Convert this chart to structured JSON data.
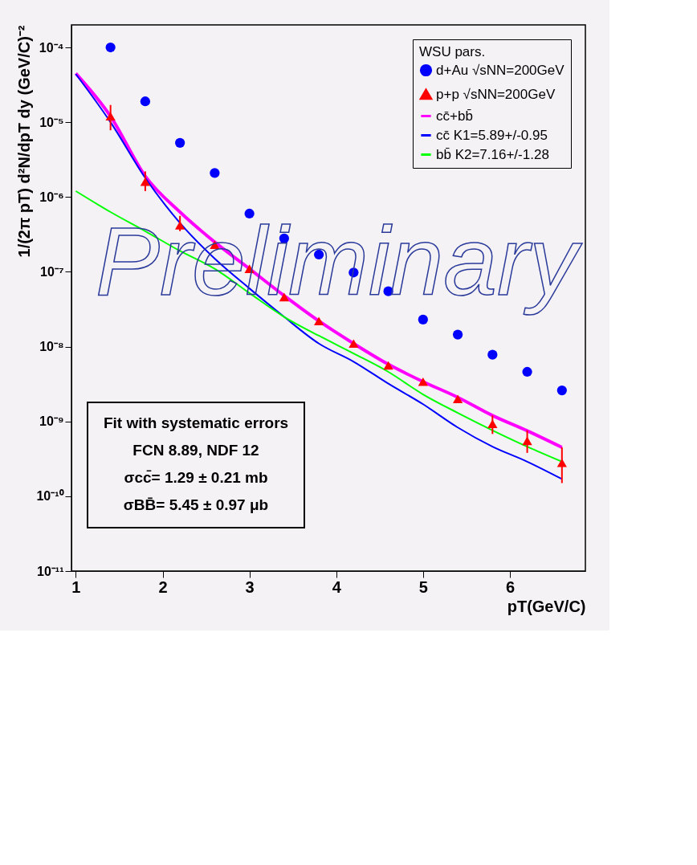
{
  "chart_data": {
    "type": "scatter",
    "xlabel": "pT(GeV/C)",
    "ylabel": "1/(2π pT) d²N/dpT dy (GeV/C)⁻²",
    "legend_title": "WSU pars.",
    "x": [
      1.4,
      1.8,
      2.2,
      2.6,
      3.0,
      3.4,
      3.8,
      4.2,
      4.6,
      5.0,
      5.4,
      5.8,
      6.2,
      6.6
    ],
    "series": [
      {
        "name": "d+Au √sNN=200GeV",
        "marker": "circle",
        "color": "#0000ff",
        "values": [
          0.0001,
          1.9e-05,
          5.3e-06,
          2.1e-06,
          6e-07,
          2.8e-07,
          1.7e-07,
          9.8e-08,
          5.5e-08,
          2.3e-08,
          1.45e-08,
          7.8e-09,
          4.6e-09,
          2.6e-09
        ]
      },
      {
        "name": "p+p  √sNN=200GeV",
        "marker": "triangle",
        "color": "#ff0000",
        "values": [
          1.2e-05,
          1.6e-06,
          4.2e-07,
          2.3e-07,
          1.1e-07,
          4.6e-08,
          2.2e-08,
          1.1e-08,
          5.6e-09,
          3.4e-09,
          2e-09,
          9.3e-10,
          5.5e-10,
          2.8e-10
        ],
        "errors": [
          [
            7.8e-06,
            1.7e-05
          ],
          [
            1.2e-06,
            2.2e-06
          ],
          [
            3.5e-07,
            5.6e-07
          ],
          null,
          null,
          null,
          null,
          null,
          null,
          null,
          null,
          [
            6.8e-10,
            1.2e-09
          ],
          [
            3.8e-10,
            7.6e-10
          ],
          [
            1.5e-10,
            4.5e-10
          ]
        ]
      },
      {
        "name": "cc̄+bb̄",
        "type": "line",
        "color": "#ff00ff",
        "x": [
          1.0,
          1.4,
          1.8,
          2.2,
          2.6,
          3.0,
          3.4,
          3.8,
          4.2,
          4.6,
          5.0,
          5.4,
          5.8,
          6.2,
          6.6
        ],
        "values": [
          4.5e-05,
          1.2e-05,
          1.9e-06,
          6.3e-07,
          2.5e-07,
          1.1e-07,
          4.8e-08,
          2.2e-08,
          1.1e-08,
          5.8e-09,
          3.4e-09,
          2.1e-09,
          1.2e-09,
          7.5e-10,
          4.5e-10
        ]
      },
      {
        "name": "cc̄ K1=5.89+/-0.95",
        "type": "line",
        "color": "#0000ff",
        "x": [
          1.0,
          1.4,
          1.8,
          2.2,
          2.6,
          3.0,
          3.4,
          3.8,
          4.2,
          4.6,
          5.0,
          5.4,
          5.8,
          6.2,
          6.6
        ],
        "values": [
          4.4e-05,
          1e-05,
          1.8e-06,
          4.5e-07,
          1.5e-07,
          6e-08,
          2.5e-08,
          1.1e-08,
          6.3e-09,
          3.2e-09,
          1.7e-09,
          8.3e-10,
          4.6e-10,
          2.9e-10,
          1.7e-10
        ]
      },
      {
        "name": "bb̄ K2=7.16+/-1.28",
        "type": "line",
        "color": "#00ff00",
        "x": [
          1.0,
          1.4,
          1.8,
          2.2,
          2.6,
          3.0,
          3.4,
          3.8,
          4.2,
          4.6,
          5.0,
          5.4,
          5.8,
          6.2,
          6.6
        ],
        "values": [
          1.2e-06,
          6.3e-07,
          3.5e-07,
          1.9e-07,
          1.1e-07,
          5.2e-08,
          2.5e-08,
          1.4e-08,
          8.1e-09,
          4.6e-09,
          2.3e-09,
          1.3e-09,
          7.6e-10,
          4.6e-10,
          2.9e-10
        ]
      }
    ],
    "log": "y",
    "xlim": [
      0.95,
      6.87
    ],
    "ylim": [
      1e-11,
      0.0002
    ],
    "xticks": [
      1,
      2,
      3,
      4,
      5,
      6
    ],
    "yticks": [
      {
        "value": 1e-11,
        "label": "10⁻¹¹"
      },
      {
        "value": 1e-10,
        "label": "10⁻¹⁰"
      },
      {
        "value": 1e-09,
        "label": "10⁻⁹"
      },
      {
        "value": 1e-08,
        "label": "10⁻⁸"
      },
      {
        "value": 1e-07,
        "label": "10⁻⁷"
      },
      {
        "value": 1e-06,
        "label": "10⁻⁶"
      },
      {
        "value": 1e-05,
        "label": "10⁻⁵"
      },
      {
        "value": 0.0001,
        "label": "10⁻⁴"
      }
    ],
    "grid": false,
    "legend": "top right",
    "annotations": [
      "Fit with systematic errors",
      "FCN    8.89, NDF 12",
      "σcc̄= 1.29 ± 0.21 mb",
      "σBB̄= 5.45 ± 0.97 μb",
      "Preliminary"
    ]
  }
}
